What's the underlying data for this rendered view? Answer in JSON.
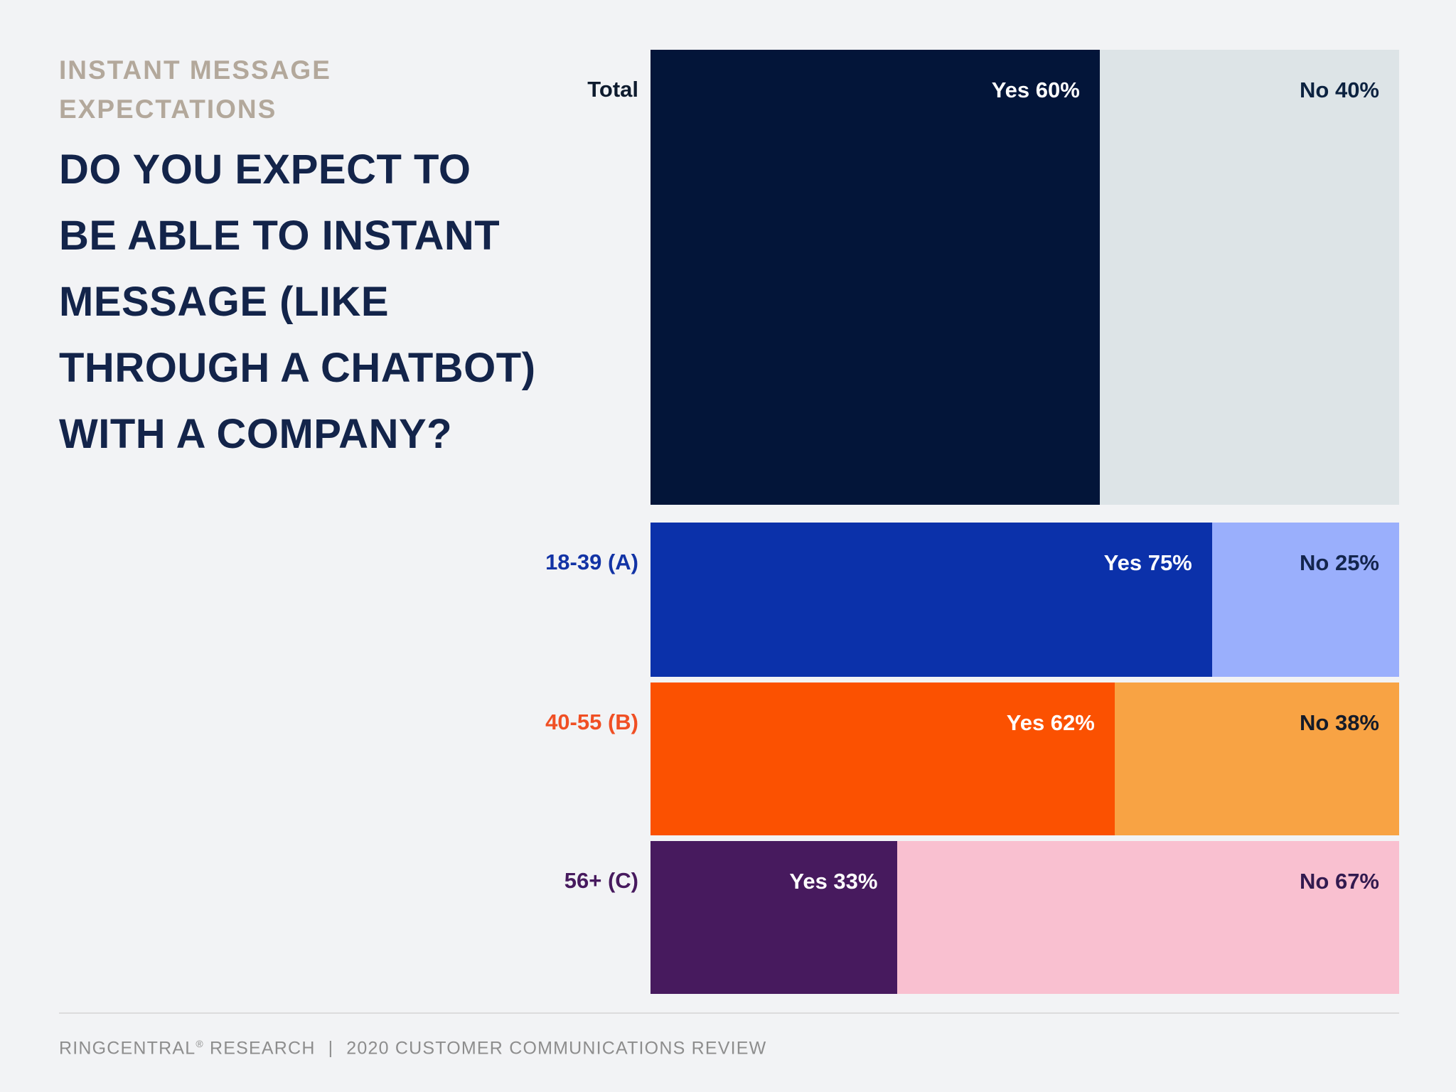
{
  "kicker": {
    "text": "INSTANT MESSAGE\nEXPECTATIONS",
    "color": "#b3a89b"
  },
  "title": {
    "full": "DO YOU EXPECT TO BE ABLE TO INSTANT MESSAGE (LIKE THROUGH A CHATBOT) WITH A COMPANY?",
    "lines": [
      "DO YOU EXPECT TO",
      "BE ABLE TO INSTANT",
      "MESSAGE (LIKE",
      "THROUGH A CHATBOT)",
      "WITH A COMPANY?"
    ],
    "color": "#13244a"
  },
  "chart_data": {
    "type": "bar",
    "orientation": "horizontal",
    "stacked": true,
    "value_unit": "percent",
    "xlim": [
      0,
      100
    ],
    "grid": false,
    "legend": "none",
    "categories": [
      "Total",
      "18-39 (A)",
      "40-55 (B)",
      "56+ (C)"
    ],
    "series": [
      {
        "name": "Yes",
        "values": [
          60,
          75,
          62,
          33
        ]
      },
      {
        "name": "No",
        "values": [
          40,
          25,
          38,
          67
        ]
      }
    ],
    "rows": [
      {
        "category": "Total",
        "category_color": "#0e1b2e",
        "yes_pct": 60,
        "no_pct": 40,
        "yes_label": "Yes 60%",
        "no_label": "No 40%",
        "yes_color": "#031539",
        "no_color": "#dde4e7",
        "yes_text_color": "#ffffff",
        "no_text_color": "#0c2240"
      },
      {
        "category": "18-39 (A)",
        "category_color": "#1233a5",
        "yes_pct": 75,
        "no_pct": 25,
        "yes_label": "Yes 75%",
        "no_label": "No 25%",
        "yes_color": "#0b31aa",
        "no_color": "#9aaffc",
        "yes_text_color": "#ffffff",
        "no_text_color": "#13254d"
      },
      {
        "category": "40-55 (B)",
        "category_color": "#f04f24",
        "yes_pct": 62,
        "no_pct": 38,
        "yes_label": "Yes 62%",
        "no_label": "No 38%",
        "yes_color": "#fb5101",
        "no_color": "#f8a344",
        "yes_text_color": "#ffffff",
        "no_text_color": "#141b29"
      },
      {
        "category": "56+ (C)",
        "category_color": "#471a5e",
        "yes_pct": 33,
        "no_pct": 67,
        "yes_label": "Yes 33%",
        "no_label": "No 67%",
        "yes_color": "#471a5e",
        "no_color": "#f9c0d0",
        "yes_text_color": "#ffffff",
        "no_text_color": "#321a4f"
      }
    ]
  },
  "footer": {
    "company": "RINGCENTRAL",
    "reg_mark": "®",
    "research": " RESEARCH",
    "divider": "|",
    "review": "2020 CUSTOMER COMMUNICATIONS REVIEW",
    "text_color": "#8d8d8d",
    "line_color": "#dcdcdc"
  }
}
